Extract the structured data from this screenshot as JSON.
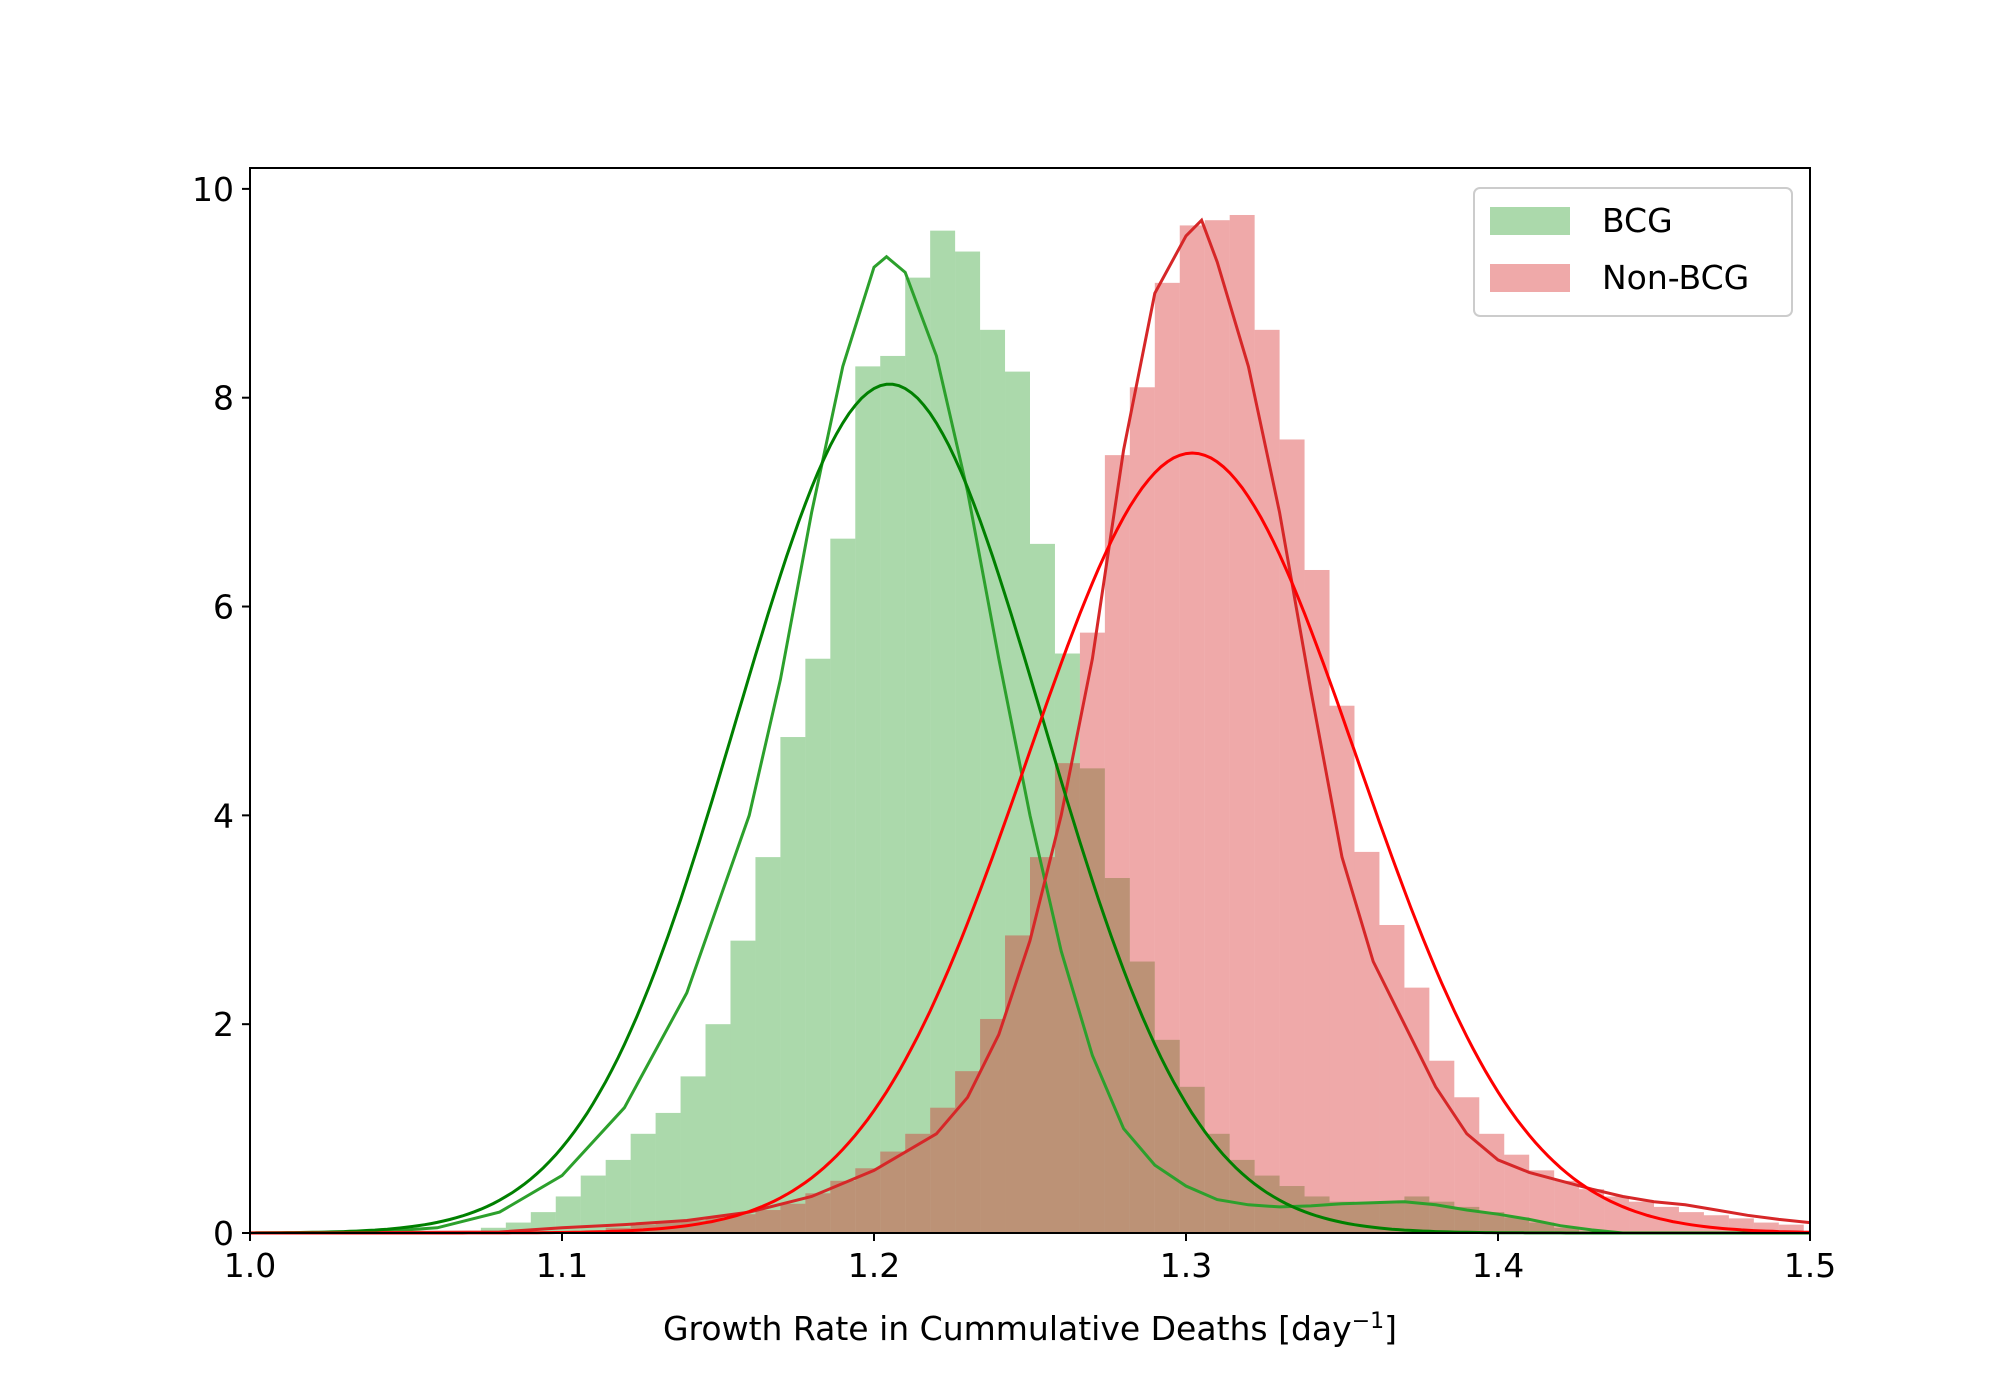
{
  "chart_data": {
    "type": "histogram",
    "xlabel_main": "Growth Rate in Cummulative Deaths [day",
    "xlabel_sup": "−1",
    "xlabel_end": "]",
    "ylabel": "",
    "xlim": [
      1.0,
      1.5
    ],
    "ylim": [
      0,
      10.2
    ],
    "x_ticks": [
      1.0,
      1.1,
      1.2,
      1.3,
      1.4,
      1.5
    ],
    "x_tick_labels": [
      "1.0",
      "1.1",
      "1.2",
      "1.3",
      "1.4",
      "1.5"
    ],
    "y_ticks": [
      0,
      2,
      4,
      6,
      8,
      10
    ],
    "y_tick_labels": [
      "0",
      "2",
      "4",
      "6",
      "8",
      "10"
    ],
    "grid": false,
    "legend_position": "top-right",
    "bin_width": 0.008,
    "series": [
      {
        "name": "BCG",
        "color": "#2ca02c",
        "fill_color": "#abdaa8",
        "fit_color": "#008000",
        "hist": [
          [
            1.078,
            0.05
          ],
          [
            1.086,
            0.1
          ],
          [
            1.094,
            0.2
          ],
          [
            1.102,
            0.35
          ],
          [
            1.11,
            0.55
          ],
          [
            1.118,
            0.7
          ],
          [
            1.126,
            0.95
          ],
          [
            1.134,
            1.15
          ],
          [
            1.142,
            1.5
          ],
          [
            1.15,
            2.0
          ],
          [
            1.158,
            2.8
          ],
          [
            1.166,
            3.6
          ],
          [
            1.174,
            4.75
          ],
          [
            1.182,
            5.5
          ],
          [
            1.19,
            6.65
          ],
          [
            1.198,
            8.3
          ],
          [
            1.206,
            8.4
          ],
          [
            1.214,
            9.15
          ],
          [
            1.222,
            9.6
          ],
          [
            1.23,
            9.4
          ],
          [
            1.238,
            8.65
          ],
          [
            1.246,
            8.25
          ],
          [
            1.254,
            6.6
          ],
          [
            1.262,
            5.55
          ],
          [
            1.27,
            4.45
          ],
          [
            1.278,
            3.4
          ],
          [
            1.286,
            2.6
          ],
          [
            1.294,
            1.85
          ],
          [
            1.302,
            1.4
          ],
          [
            1.31,
            0.95
          ],
          [
            1.318,
            0.7
          ],
          [
            1.326,
            0.55
          ],
          [
            1.334,
            0.45
          ],
          [
            1.342,
            0.35
          ],
          [
            1.35,
            0.3
          ],
          [
            1.358,
            0.28
          ],
          [
            1.366,
            0.3
          ],
          [
            1.374,
            0.35
          ],
          [
            1.382,
            0.3
          ],
          [
            1.39,
            0.25
          ],
          [
            1.398,
            0.2
          ],
          [
            1.406,
            0.15
          ],
          [
            1.414,
            0.1
          ],
          [
            1.422,
            0.05
          ]
        ],
        "kde": [
          [
            1.0,
            0.0
          ],
          [
            1.04,
            0.01
          ],
          [
            1.06,
            0.05
          ],
          [
            1.08,
            0.2
          ],
          [
            1.1,
            0.55
          ],
          [
            1.12,
            1.2
          ],
          [
            1.14,
            2.3
          ],
          [
            1.16,
            4.0
          ],
          [
            1.17,
            5.3
          ],
          [
            1.18,
            6.9
          ],
          [
            1.19,
            8.3
          ],
          [
            1.2,
            9.25
          ],
          [
            1.204,
            9.35
          ],
          [
            1.21,
            9.2
          ],
          [
            1.22,
            8.4
          ],
          [
            1.23,
            7.1
          ],
          [
            1.24,
            5.5
          ],
          [
            1.25,
            4.0
          ],
          [
            1.26,
            2.7
          ],
          [
            1.27,
            1.7
          ],
          [
            1.28,
            1.0
          ],
          [
            1.29,
            0.65
          ],
          [
            1.3,
            0.45
          ],
          [
            1.31,
            0.32
          ],
          [
            1.32,
            0.27
          ],
          [
            1.33,
            0.25
          ],
          [
            1.34,
            0.26
          ],
          [
            1.35,
            0.28
          ],
          [
            1.36,
            0.29
          ],
          [
            1.37,
            0.3
          ],
          [
            1.38,
            0.27
          ],
          [
            1.39,
            0.22
          ],
          [
            1.4,
            0.18
          ],
          [
            1.41,
            0.13
          ],
          [
            1.42,
            0.07
          ],
          [
            1.43,
            0.03
          ],
          [
            1.44,
            0.0
          ]
        ],
        "fit": {
          "mean": 1.205,
          "sd": 0.049,
          "peak": 8.13
        }
      },
      {
        "name": "Non-BCG",
        "color": "#d62728",
        "fill_color": "#eea8aa",
        "fit_color": "#ff0000",
        "hist": [
          [
            1.118,
            0.05
          ],
          [
            1.126,
            0.08
          ],
          [
            1.134,
            0.1
          ],
          [
            1.142,
            0.12
          ],
          [
            1.15,
            0.15
          ],
          [
            1.158,
            0.18
          ],
          [
            1.166,
            0.22
          ],
          [
            1.174,
            0.28
          ],
          [
            1.182,
            0.38
          ],
          [
            1.19,
            0.5
          ],
          [
            1.198,
            0.62
          ],
          [
            1.206,
            0.78
          ],
          [
            1.214,
            0.95
          ],
          [
            1.222,
            1.2
          ],
          [
            1.23,
            1.55
          ],
          [
            1.238,
            2.05
          ],
          [
            1.246,
            2.85
          ],
          [
            1.254,
            3.6
          ],
          [
            1.262,
            4.5
          ],
          [
            1.27,
            5.75
          ],
          [
            1.278,
            7.45
          ],
          [
            1.286,
            8.1
          ],
          [
            1.294,
            9.1
          ],
          [
            1.302,
            9.65
          ],
          [
            1.31,
            9.7
          ],
          [
            1.318,
            9.75
          ],
          [
            1.326,
            8.65
          ],
          [
            1.334,
            7.6
          ],
          [
            1.342,
            6.35
          ],
          [
            1.35,
            5.05
          ],
          [
            1.358,
            3.65
          ],
          [
            1.366,
            2.95
          ],
          [
            1.374,
            2.35
          ],
          [
            1.382,
            1.65
          ],
          [
            1.39,
            1.3
          ],
          [
            1.398,
            0.95
          ],
          [
            1.406,
            0.75
          ],
          [
            1.414,
            0.6
          ],
          [
            1.422,
            0.5
          ],
          [
            1.43,
            0.42
          ],
          [
            1.438,
            0.35
          ],
          [
            1.446,
            0.3
          ],
          [
            1.454,
            0.25
          ],
          [
            1.462,
            0.2
          ],
          [
            1.47,
            0.17
          ],
          [
            1.478,
            0.14
          ],
          [
            1.486,
            0.1
          ],
          [
            1.494,
            0.08
          ]
        ],
        "kde": [
          [
            1.0,
            0.0
          ],
          [
            1.08,
            0.01
          ],
          [
            1.1,
            0.05
          ],
          [
            1.12,
            0.08
          ],
          [
            1.14,
            0.12
          ],
          [
            1.16,
            0.2
          ],
          [
            1.18,
            0.35
          ],
          [
            1.2,
            0.6
          ],
          [
            1.22,
            0.95
          ],
          [
            1.23,
            1.3
          ],
          [
            1.24,
            1.9
          ],
          [
            1.25,
            2.8
          ],
          [
            1.26,
            4.0
          ],
          [
            1.27,
            5.5
          ],
          [
            1.28,
            7.5
          ],
          [
            1.29,
            9.0
          ],
          [
            1.3,
            9.55
          ],
          [
            1.305,
            9.7
          ],
          [
            1.31,
            9.3
          ],
          [
            1.32,
            8.3
          ],
          [
            1.33,
            6.9
          ],
          [
            1.34,
            5.2
          ],
          [
            1.35,
            3.6
          ],
          [
            1.36,
            2.6
          ],
          [
            1.37,
            2.0
          ],
          [
            1.38,
            1.4
          ],
          [
            1.39,
            0.95
          ],
          [
            1.4,
            0.7
          ],
          [
            1.41,
            0.58
          ],
          [
            1.42,
            0.5
          ],
          [
            1.43,
            0.42
          ],
          [
            1.44,
            0.35
          ],
          [
            1.45,
            0.3
          ],
          [
            1.46,
            0.27
          ],
          [
            1.47,
            0.22
          ],
          [
            1.48,
            0.17
          ],
          [
            1.49,
            0.13
          ],
          [
            1.5,
            0.1
          ]
        ],
        "fit": {
          "mean": 1.302,
          "sd": 0.053,
          "peak": 7.47
        }
      }
    ]
  }
}
